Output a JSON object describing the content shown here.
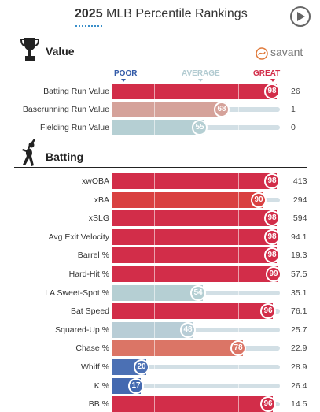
{
  "header": {
    "year": "2025",
    "title": "MLB Percentile Rankings",
    "play_icon": "play-icon"
  },
  "colors": {
    "great": "#d22d49",
    "average": "#b2cbd1",
    "poor": "#325aa8",
    "track": "#d2dfe5"
  },
  "value_section": {
    "title": "Value",
    "brand": "savant",
    "scale": {
      "poor": "POOR",
      "average": "AVERAGE",
      "great": "GREAT"
    },
    "rows": [
      {
        "label": "Batting Run Value",
        "percentile": 98,
        "value": "26",
        "color": "#d22d49"
      },
      {
        "label": "Baserunning Run Value",
        "percentile": 68,
        "value": "1",
        "color": "#d5a29a"
      },
      {
        "label": "Fielding Run Value",
        "percentile": 55,
        "value": "0",
        "color": "#b5cfd3"
      }
    ]
  },
  "batting_section": {
    "title": "Batting",
    "rows": [
      {
        "label": "xwOBA",
        "percentile": 98,
        "value": ".413",
        "color": "#d22d49"
      },
      {
        "label": "xBA",
        "percentile": 90,
        "value": ".294",
        "color": "#d94040"
      },
      {
        "label": "xSLG",
        "percentile": 98,
        "value": ".594",
        "color": "#d22d49"
      },
      {
        "label": "Avg Exit Velocity",
        "percentile": 98,
        "value": "94.1",
        "color": "#d22d49"
      },
      {
        "label": "Barrel %",
        "percentile": 98,
        "value": "19.3",
        "color": "#d22d49"
      },
      {
        "label": "Hard-Hit %",
        "percentile": 99,
        "value": "57.5",
        "color": "#d22d49"
      },
      {
        "label": "LA Sweet-Spot %",
        "percentile": 54,
        "value": "35.1",
        "color": "#b5cfd3"
      },
      {
        "label": "Bat Speed",
        "percentile": 96,
        "value": "76.1",
        "color": "#d22d49"
      },
      {
        "label": "Squared-Up %",
        "percentile": 48,
        "value": "25.7",
        "color": "#b8cdd6"
      },
      {
        "label": "Chase %",
        "percentile": 78,
        "value": "22.9",
        "color": "#db7566"
      },
      {
        "label": "Whiff %",
        "percentile": 20,
        "value": "28.9",
        "color": "#4b70b4"
      },
      {
        "label": "K %",
        "percentile": 17,
        "value": "26.4",
        "color": "#4469b0"
      },
      {
        "label": "BB %",
        "percentile": 96,
        "value": "14.5",
        "color": "#d22d49"
      }
    ]
  }
}
